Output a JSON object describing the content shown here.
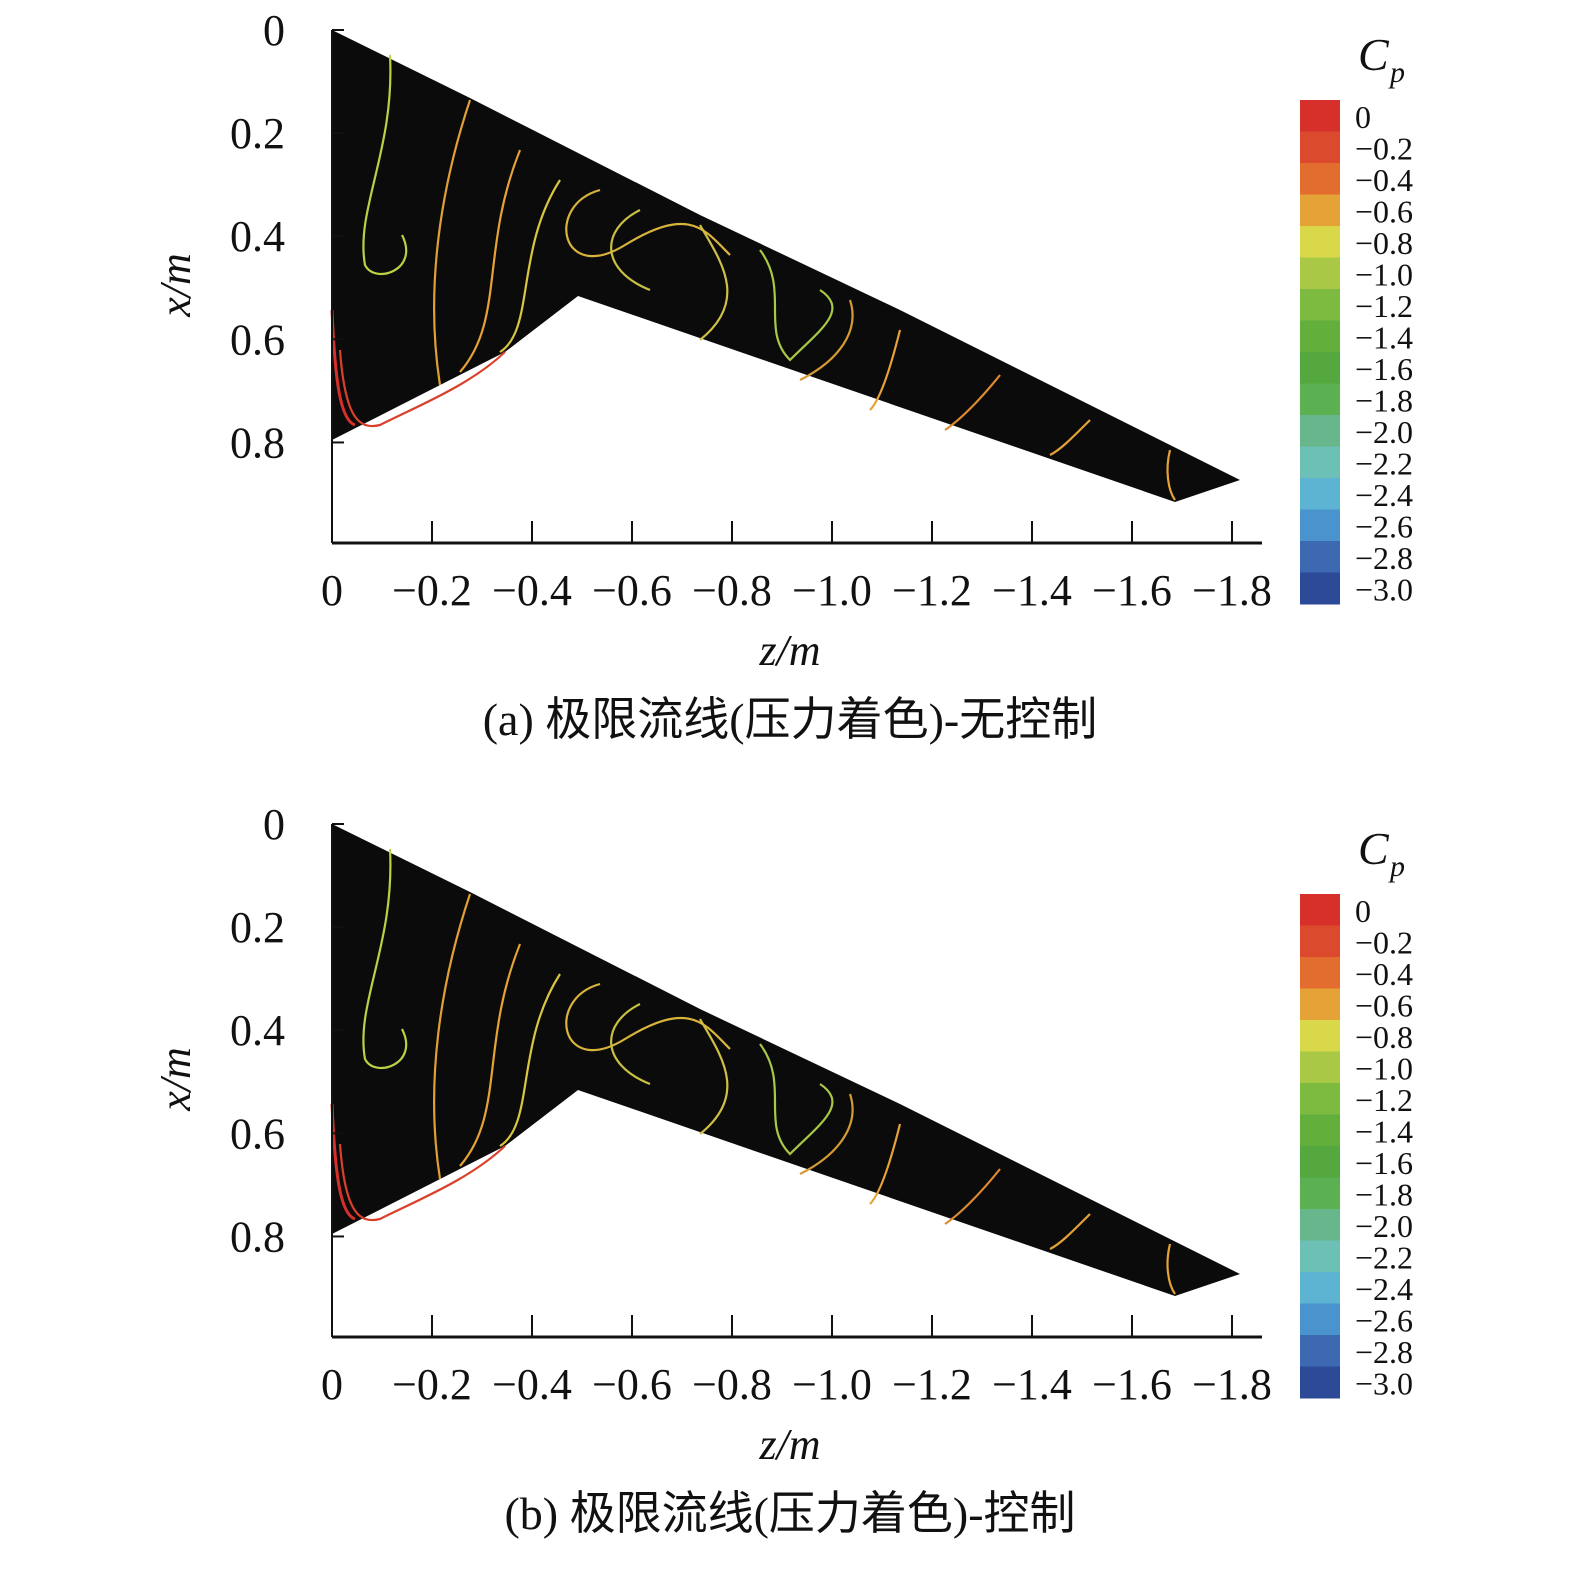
{
  "chart_data": [
    {
      "type": "streamline",
      "title": "(a) 极限流线(压力着色)-无控制",
      "xlabel": "z/m",
      "ylabel": "x/m",
      "xlim": [
        0,
        -1.86
      ],
      "ylim": [
        0,
        0.995
      ],
      "xticks": [
        0,
        {
          "value": -0.2,
          "label": "−0.2"
        },
        {
          "value": -0.4,
          "label": "−0.4"
        },
        {
          "value": -0.6,
          "label": "−0.6"
        },
        {
          "value": -0.8,
          "label": "−0.8"
        },
        {
          "value": -1.0,
          "label": "−1.0"
        },
        {
          "value": -1.2,
          "label": "−1.2"
        },
        {
          "value": -1.4,
          "label": "−1.4"
        },
        {
          "value": -1.6,
          "label": "−1.6"
        },
        {
          "value": -1.8,
          "label": "−1.8"
        }
      ],
      "yticks": [
        0,
        0.2,
        0.4,
        0.6,
        0.8
      ],
      "colorbar": {
        "title": "C",
        "subscript": "p",
        "levels": [
          0,
          {
            "value": -0.2,
            "label": "−0.2"
          },
          {
            "value": -0.4,
            "label": "−0.4"
          },
          {
            "value": -0.6,
            "label": "−0.6"
          },
          {
            "value": -0.8,
            "label": "−0.8"
          },
          {
            "value": -1.0,
            "label": "−1.0"
          },
          {
            "value": -1.2,
            "label": "−1.2"
          },
          {
            "value": -1.4,
            "label": "−1.4"
          },
          {
            "value": -1.6,
            "label": "−1.6"
          },
          {
            "value": -1.8,
            "label": "−1.8"
          },
          {
            "value": -2.0,
            "label": "−2.0"
          },
          {
            "value": -2.2,
            "label": "−2.2"
          },
          {
            "value": -2.4,
            "label": "−2.4"
          },
          {
            "value": -2.6,
            "label": "−2.6"
          },
          {
            "value": -2.8,
            "label": "−2.8"
          },
          {
            "value": -3.0,
            "label": "−3.0"
          }
        ],
        "colors": [
          "#d7302a",
          "#db4a2c",
          "#e26d2f",
          "#e5a236",
          "#d8d84a",
          "#a9c845",
          "#7cba40",
          "#62af3c",
          "#55a83e",
          "#5bb052",
          "#68b68c",
          "#6cc0b5",
          "#5cb3d2",
          "#4a93cd",
          "#3d68b2",
          "#2d4a99"
        ]
      }
    },
    {
      "type": "streamline",
      "title": "(b) 极限流线(压力着色)-控制",
      "xlabel": "z/m",
      "ylabel": "x/m",
      "xlim": [
        0,
        -1.86
      ],
      "ylim": [
        0,
        0.995
      ],
      "xticks": [
        0,
        {
          "value": -0.2,
          "label": "−0.2"
        },
        {
          "value": -0.4,
          "label": "−0.4"
        },
        {
          "value": -0.6,
          "label": "−0.6"
        },
        {
          "value": -0.8,
          "label": "−0.8"
        },
        {
          "value": -1.0,
          "label": "−1.0"
        },
        {
          "value": -1.2,
          "label": "−1.2"
        },
        {
          "value": -1.4,
          "label": "−1.4"
        },
        {
          "value": -1.6,
          "label": "−1.6"
        },
        {
          "value": -1.8,
          "label": "−1.8"
        }
      ],
      "yticks": [
        0,
        0.2,
        0.4,
        0.6,
        0.8
      ],
      "colorbar": {
        "title": "C",
        "subscript": "p",
        "levels": [
          0,
          {
            "value": -0.2,
            "label": "−0.2"
          },
          {
            "value": -0.4,
            "label": "−0.4"
          },
          {
            "value": -0.6,
            "label": "−0.6"
          },
          {
            "value": -0.8,
            "label": "−0.8"
          },
          {
            "value": -1.0,
            "label": "−1.0"
          },
          {
            "value": -1.2,
            "label": "−1.2"
          },
          {
            "value": -1.4,
            "label": "−1.4"
          },
          {
            "value": -1.6,
            "label": "−1.6"
          },
          {
            "value": -1.8,
            "label": "−1.8"
          },
          {
            "value": -2.0,
            "label": "−2.0"
          },
          {
            "value": -2.2,
            "label": "−2.2"
          },
          {
            "value": -2.4,
            "label": "−2.4"
          },
          {
            "value": -2.6,
            "label": "−2.6"
          },
          {
            "value": -2.8,
            "label": "−2.8"
          },
          {
            "value": -3.0,
            "label": "−3.0"
          }
        ],
        "colors": [
          "#d7302a",
          "#db4a2c",
          "#e26d2f",
          "#e5a236",
          "#d8d84a",
          "#a9c845",
          "#7cba40",
          "#62af3c",
          "#55a83e",
          "#5bb052",
          "#68b68c",
          "#6cc0b5",
          "#5cb3d2",
          "#4a93cd",
          "#3d68b2",
          "#2d4a99"
        ]
      }
    }
  ]
}
